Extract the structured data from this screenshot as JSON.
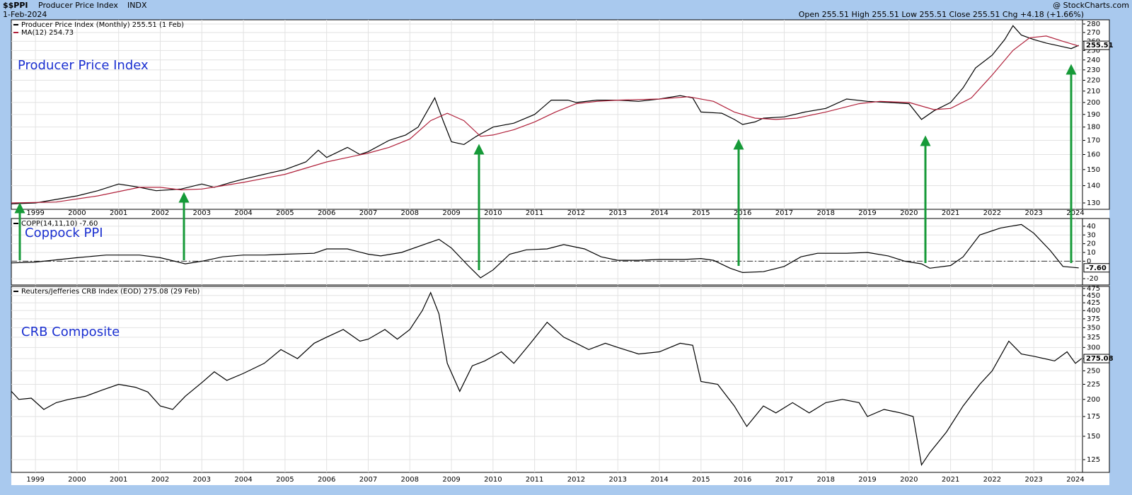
{
  "header": {
    "symbol": "$$PPI",
    "name": "Producer Price Index",
    "exchange": "INDX",
    "date": "1-Feb-2024",
    "quote": "Open 255.51  High 255.51  Low 255.51  Close 255.51  Chg +4.18 (+1.66%)",
    "credit": "@ StockCharts.com"
  },
  "chart_data": [
    {
      "type": "line",
      "title": "Producer Price Index",
      "log_scale": true,
      "grid": true,
      "x_labels": true,
      "xlim": [
        1998.42,
        2024.17
      ],
      "xticks": [
        1999,
        2000,
        2001,
        2002,
        2003,
        2004,
        2005,
        2006,
        2007,
        2008,
        2009,
        2010,
        2011,
        2012,
        2013,
        2014,
        2015,
        2016,
        2017,
        2018,
        2019,
        2020,
        2021,
        2022,
        2023,
        2024
      ],
      "ylim": [
        126.5,
        285.1
      ],
      "yticks": [
        130,
        140,
        150,
        160,
        170,
        180,
        190,
        200,
        210,
        220,
        230,
        240,
        250,
        260,
        270,
        280
      ],
      "series": [
        {
          "name": "Producer Price Index (Monthly) 255.51 (1 Feb)",
          "color": "#000000",
          "last_value_label": "255.51",
          "x": [
            1998.42,
            1999.0,
            1999.5,
            2000.0,
            2000.5,
            2001.0,
            2001.5,
            2001.9,
            2002.5,
            2003.0,
            2003.3,
            2003.7,
            2004.0,
            2004.5,
            2005.0,
            2005.5,
            2005.8,
            2006.0,
            2006.5,
            2006.8,
            2007.0,
            2007.5,
            2007.9,
            2008.2,
            2008.6,
            2008.8,
            2009.0,
            2009.3,
            2009.6,
            2010.0,
            2010.5,
            2011.0,
            2011.4,
            2011.8,
            2012.0,
            2012.5,
            2013.0,
            2013.5,
            2014.0,
            2014.5,
            2014.8,
            2015.0,
            2015.5,
            2015.8,
            2016.0,
            2016.3,
            2016.5,
            2017.0,
            2017.5,
            2018.0,
            2018.5,
            2019.0,
            2019.5,
            2020.0,
            2020.3,
            2020.6,
            2021.0,
            2021.3,
            2021.6,
            2022.0,
            2022.3,
            2022.5,
            2022.7,
            2023.0,
            2023.3,
            2023.6,
            2023.9,
            2024.08
          ],
          "values": [
            129.5,
            130,
            132,
            134,
            137,
            141,
            139,
            137,
            138,
            141,
            139,
            142,
            144,
            147,
            150,
            155,
            163,
            158,
            165,
            160,
            162,
            170,
            174,
            180,
            204,
            185,
            169,
            167,
            173,
            180,
            183,
            190,
            202,
            202,
            200,
            202,
            202,
            201,
            203,
            206,
            204,
            192,
            191,
            186,
            182,
            184,
            187,
            188,
            192,
            195,
            203,
            201,
            200,
            199,
            186,
            193,
            200,
            213,
            232,
            245,
            262,
            278,
            267,
            262,
            258,
            255,
            252,
            255.51
          ]
        },
        {
          "name": "MA(12) 254.73",
          "color": "#b0203a",
          "x": [
            1998.42,
            1999.5,
            2000.5,
            2001.5,
            2002.0,
            2002.5,
            2003.0,
            2003.5,
            2004.0,
            2005.0,
            2006.0,
            2007.0,
            2007.5,
            2008.0,
            2008.5,
            2008.9,
            2009.3,
            2009.7,
            2010.0,
            2010.5,
            2011.0,
            2011.5,
            2012.0,
            2012.5,
            2013.0,
            2014.0,
            2014.7,
            2015.3,
            2015.8,
            2016.3,
            2016.8,
            2017.3,
            2018.0,
            2018.8,
            2019.3,
            2020.0,
            2020.6,
            2021.0,
            2021.5,
            2022.0,
            2022.5,
            2022.9,
            2023.3,
            2023.7,
            2024.08
          ],
          "values": [
            130,
            130.5,
            134,
            139,
            139,
            137.5,
            138,
            140,
            142,
            147,
            155,
            161,
            165,
            171,
            185,
            191,
            185,
            173,
            174,
            178,
            184,
            192,
            199,
            201,
            202,
            203,
            205,
            201,
            192,
            187,
            186,
            187,
            192,
            199,
            201,
            200,
            194,
            195,
            204,
            225,
            250,
            264,
            266,
            260,
            254.73
          ]
        }
      ]
    },
    {
      "type": "line",
      "title": "Coppock PPI",
      "log_scale": false,
      "grid": true,
      "x_labels": false,
      "zero_line": true,
      "xlim": [
        1998.42,
        2024.17
      ],
      "xticks": [
        1999,
        2000,
        2001,
        2002,
        2003,
        2004,
        2005,
        2006,
        2007,
        2008,
        2009,
        2010,
        2011,
        2012,
        2013,
        2014,
        2015,
        2016,
        2017,
        2018,
        2019,
        2020,
        2021,
        2022,
        2023,
        2024
      ],
      "ylim": [
        -27.2,
        48.8
      ],
      "yticks": [
        -20,
        0,
        10,
        20,
        30,
        40
      ],
      "series": [
        {
          "name": "COPP(14,11,10) -7.60",
          "color": "#000000",
          "last_value_label": "-7.60",
          "x": [
            1998.42,
            1999.0,
            2000.0,
            2000.7,
            2001.5,
            2002.0,
            2002.6,
            2003.0,
            2003.5,
            2004.0,
            2004.5,
            2005.0,
            2005.7,
            2006.0,
            2006.5,
            2007.0,
            2007.3,
            2007.8,
            2008.4,
            2008.7,
            2009.0,
            2009.4,
            2009.7,
            2010.0,
            2010.4,
            2010.8,
            2011.3,
            2011.7,
            2012.2,
            2012.6,
            2013.0,
            2013.5,
            2014.0,
            2014.6,
            2015.0,
            2015.3,
            2015.7,
            2016.0,
            2016.5,
            2017.0,
            2017.4,
            2017.8,
            2018.5,
            2019.0,
            2019.5,
            2019.9,
            2020.3,
            2020.5,
            2021.0,
            2021.3,
            2021.7,
            2022.2,
            2022.7,
            2023.0,
            2023.4,
            2023.7,
            2024.08
          ],
          "values": [
            -2,
            -1,
            4,
            7,
            7,
            4,
            -3,
            0,
            5,
            7,
            7,
            8,
            9,
            14,
            14,
            8,
            6,
            10,
            20,
            25,
            15,
            -5,
            -19,
            -10,
            8,
            13,
            14,
            19,
            14,
            5,
            1,
            1,
            2,
            2,
            3,
            1,
            -8,
            -13,
            -12,
            -6,
            5,
            9,
            9,
            10,
            6,
            0,
            -3,
            -8,
            -5,
            5,
            30,
            38,
            42,
            32,
            12,
            -6,
            -7.6
          ]
        }
      ]
    },
    {
      "type": "line",
      "title": "CRB Composite",
      "log_scale": true,
      "grid": true,
      "x_labels": true,
      "xlim": [
        1998.42,
        2024.17
      ],
      "xticks": [
        1999,
        2000,
        2001,
        2002,
        2003,
        2004,
        2005,
        2006,
        2007,
        2008,
        2009,
        2010,
        2011,
        2012,
        2013,
        2014,
        2015,
        2016,
        2017,
        2018,
        2019,
        2020,
        2021,
        2022,
        2023,
        2024
      ],
      "ylim": [
        113.2,
        483
      ],
      "yticks": [
        125,
        150,
        175,
        200,
        225,
        250,
        275,
        300,
        325,
        350,
        375,
        400,
        425,
        450,
        475
      ],
      "series": [
        {
          "name": "Reuters/Jefferies CRB Index (EOD) 275.08 (29 Feb)",
          "color": "#000000",
          "last_value_label": "275.08",
          "x": [
            1998.42,
            1998.6,
            1998.9,
            1999.2,
            1999.5,
            1999.8,
            2000.2,
            2000.6,
            2001.0,
            2001.4,
            2001.7,
            2002.0,
            2002.3,
            2002.6,
            2003.0,
            2003.3,
            2003.6,
            2004.0,
            2004.5,
            2004.9,
            2005.3,
            2005.7,
            2006.0,
            2006.4,
            2006.8,
            2007.0,
            2007.4,
            2007.7,
            2008.0,
            2008.3,
            2008.5,
            2008.7,
            2008.9,
            2009.2,
            2009.5,
            2009.8,
            2010.2,
            2010.5,
            2010.9,
            2011.3,
            2011.7,
            2012.0,
            2012.3,
            2012.7,
            2013.0,
            2013.5,
            2014.0,
            2014.5,
            2014.8,
            2015.0,
            2015.4,
            2015.8,
            2016.1,
            2016.5,
            2016.8,
            2017.2,
            2017.6,
            2018.0,
            2018.4,
            2018.8,
            2019.0,
            2019.4,
            2019.8,
            2020.1,
            2020.3,
            2020.5,
            2020.9,
            2021.3,
            2021.7,
            2022.0,
            2022.4,
            2022.7,
            2023.0,
            2023.5,
            2023.8,
            2024.0,
            2024.15
          ],
          "values": [
            213,
            200,
            202,
            185,
            195,
            200,
            205,
            215,
            225,
            220,
            212,
            190,
            185,
            205,
            228,
            248,
            232,
            245,
            265,
            295,
            275,
            310,
            325,
            345,
            315,
            320,
            345,
            320,
            345,
            400,
            460,
            390,
            265,
            213,
            260,
            270,
            290,
            265,
            310,
            365,
            325,
            310,
            295,
            310,
            300,
            285,
            290,
            310,
            305,
            230,
            225,
            190,
            162,
            190,
            180,
            195,
            180,
            195,
            200,
            195,
            175,
            185,
            180,
            175,
            120,
            132,
            155,
            190,
            225,
            250,
            315,
            285,
            280,
            270,
            290,
            265,
            275.08
          ]
        }
      ]
    }
  ]
}
